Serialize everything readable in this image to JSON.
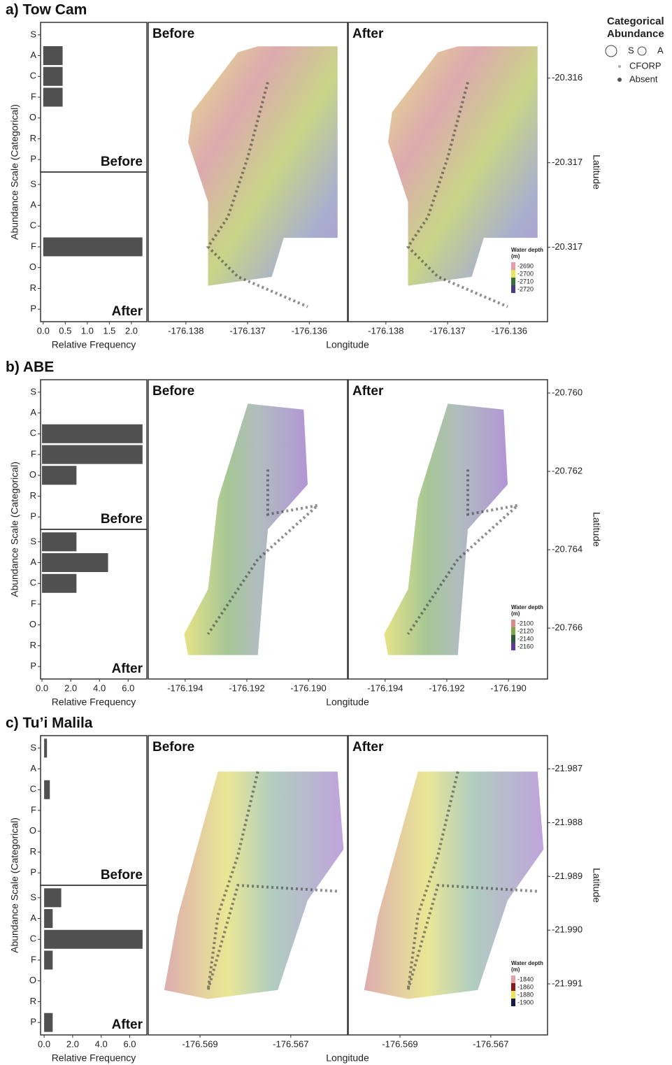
{
  "legend": {
    "title": "Categorical Abundance",
    "items": [
      "S",
      "A",
      "CFORP",
      "Absent"
    ]
  },
  "chart_data": [
    {
      "type": "bar",
      "title": "a) Tow Cam",
      "y_label": "Abundance Scale (Categorical)",
      "x_label": "Relative Frequency",
      "categories": [
        "S",
        "A",
        "C",
        "F",
        "O",
        "R",
        "P"
      ],
      "facets": [
        {
          "name": "Before",
          "values": [
            0,
            0.44,
            0.44,
            0.44,
            0,
            0,
            0
          ]
        },
        {
          "name": "After",
          "values": [
            0,
            0,
            0,
            2.25,
            0,
            0,
            0
          ]
        }
      ],
      "xlim": [
        -0.06,
        2.35
      ],
      "xticks": [
        {
          "value": 0,
          "label": "0.0"
        },
        {
          "value": 0.5,
          "label": "0.5"
        },
        {
          "value": 1,
          "label": "1.0"
        },
        {
          "value": 1.5,
          "label": "1.5"
        },
        {
          "value": 2,
          "label": "2.0"
        }
      ],
      "map": {
        "type": "map",
        "x_label": "Longitude",
        "y_label": "Latitude",
        "facets": [
          "Before",
          "After"
        ],
        "xlim": [
          -176.13861,
          -176.13538
        ],
        "xticks": [
          -176.138,
          -176.137,
          -176.136
        ],
        "ylim": [
          -20.31744,
          -20.31567
        ],
        "yticks": [
          {
            "value": -20.316,
            "label": "-20.316"
          },
          {
            "value": -20.3165,
            "label": "-20.317"
          },
          {
            "value": -20.317,
            "label": "-20.317"
          }
        ],
        "depth_legend": {
          "title": "Water depth (m)",
          "ticks": [
            -2690,
            -2700,
            -2710,
            -2720
          ],
          "colors": [
            "#e89aa6",
            "#e8e35a",
            "#3c6e3a",
            "#4a3a8a"
          ]
        }
      }
    },
    {
      "type": "bar",
      "title": "b) ABE",
      "y_label": "Abundance Scale (Categorical)",
      "x_label": "Relative Frequency",
      "categories": [
        "S",
        "A",
        "C",
        "F",
        "O",
        "R",
        "P"
      ],
      "facets": [
        {
          "name": "Before",
          "values": [
            0,
            0,
            7.0,
            7.0,
            2.4,
            0,
            0
          ]
        },
        {
          "name": "After",
          "values": [
            2.4,
            4.6,
            2.4,
            0,
            0,
            0,
            0
          ]
        }
      ],
      "xlim": [
        -0.1,
        7.3
      ],
      "xticks": [
        {
          "value": 0,
          "label": "0.0"
        },
        {
          "value": 2,
          "label": "2.0"
        },
        {
          "value": 4,
          "label": "4.0"
        },
        {
          "value": 6,
          "label": "6.0"
        }
      ],
      "map": {
        "type": "map",
        "x_label": "Longitude",
        "y_label": "Latitude",
        "facets": [
          "Before",
          "After"
        ],
        "xlim": [
          -176.1952,
          -176.18873
        ],
        "xticks": [
          -176.194,
          -176.192,
          {
            "value": -176.19,
            "label": "-176.190"
          }
        ],
        "ylim": [
          -20.7673,
          -20.75966
        ],
        "yticks": [
          {
            "value": -20.76,
            "label": "-20.760"
          },
          -20.762,
          -20.764,
          -20.766
        ],
        "depth_legend": {
          "title": "Water depth (m)",
          "ticks": [
            -2100,
            -2120,
            -2140,
            -2160
          ],
          "colors": [
            "#d98a8a",
            "#7aa84a",
            "#2f5a3a",
            "#5a3a9a"
          ]
        }
      }
    },
    {
      "type": "bar",
      "title": "c) Tu’i Malila",
      "y_label": "Abundance Scale (Categorical)",
      "x_label": "Relative Frequency",
      "categories": [
        "S",
        "A",
        "C",
        "F",
        "O",
        "R",
        "P"
      ],
      "facets": [
        {
          "name": "Before",
          "values": [
            0.2,
            0,
            0.4,
            0,
            0,
            0,
            0
          ]
        },
        {
          "name": "After",
          "values": [
            1.2,
            0.6,
            6.9,
            0.6,
            0,
            0,
            0.6
          ]
        }
      ],
      "xlim": [
        -0.25,
        7.2
      ],
      "xticks": [
        {
          "value": 0,
          "label": "0.0"
        },
        {
          "value": 2,
          "label": "2.0"
        },
        {
          "value": 4,
          "label": "4.0"
        },
        {
          "value": 6,
          "label": "6.0"
        }
      ],
      "map": {
        "type": "map",
        "x_label": "Longitude",
        "y_label": "Latitude",
        "facets": [
          "Before",
          "After"
        ],
        "xlim": [
          -176.57014,
          -176.56575
        ],
        "xticks": [
          -176.569,
          -176.567
        ],
        "ylim": [
          -21.99195,
          -21.98638
        ],
        "yticks": [
          -21.987,
          -21.988,
          -21.989,
          {
            "value": -21.99,
            "label": "-21.990"
          },
          -21.991
        ],
        "depth_legend": {
          "title": "Water depth (m)",
          "ticks": [
            -1840,
            -1860,
            -1880,
            -1900
          ],
          "colors": [
            "#e8a0a8",
            "#8a1a1a",
            "#e8e35a",
            "#1a1a4a"
          ]
        }
      }
    }
  ]
}
